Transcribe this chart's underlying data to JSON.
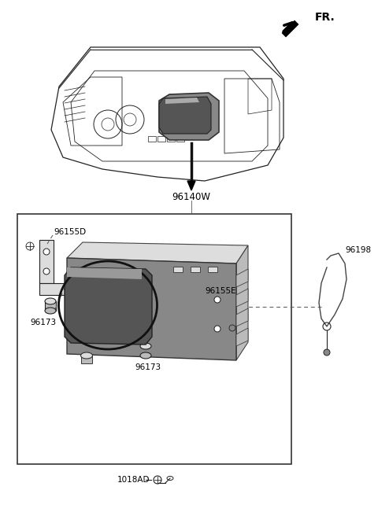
{
  "background_color": "#ffffff",
  "line_color": "#222222",
  "part_label_96140W": "96140W",
  "part_label_96155D": "96155D",
  "part_label_96155E": "96155E",
  "part_label_96173a": "96173",
  "part_label_96173b": "96173",
  "part_label_96198": "96198",
  "part_label_1018AD": "1018AD",
  "fr_label": "FR.",
  "gray_dark": "#555555",
  "gray_mid": "#888888",
  "gray_light": "#bbbbbb",
  "gray_lighter": "#dddddd"
}
